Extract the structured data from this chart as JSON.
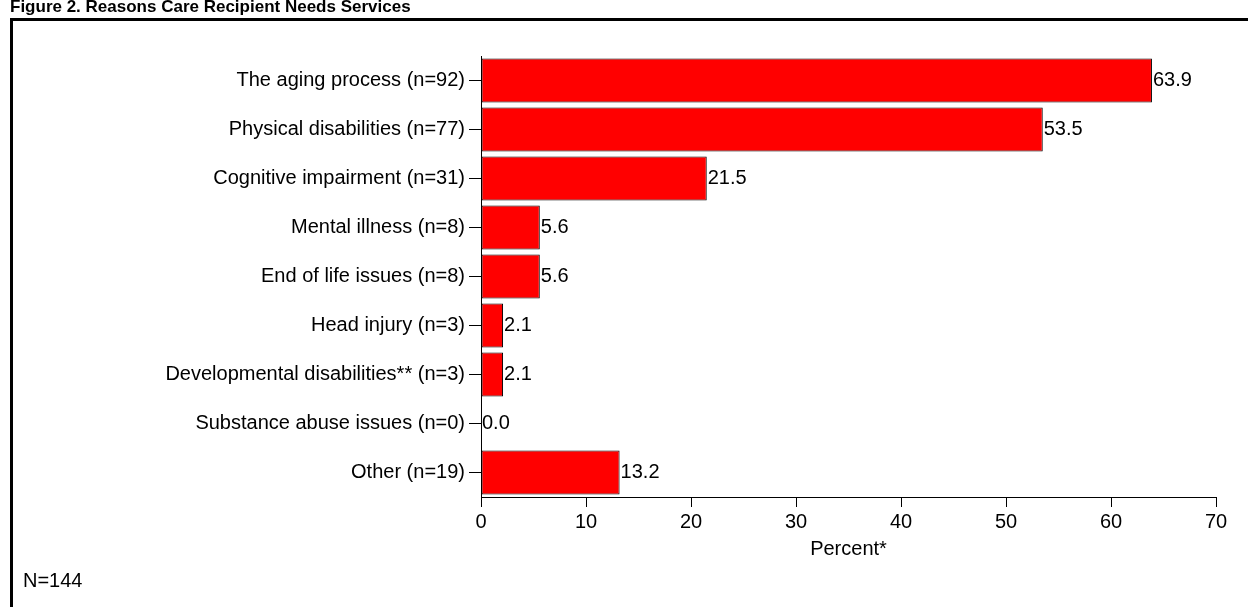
{
  "chart_data": {
    "type": "bar",
    "orientation": "horizontal",
    "title": "Figure 2. Reasons Care Recipient Needs Services",
    "xlabel": "Percent*",
    "categories": [
      "The aging process (n=92)",
      "Physical disabilities (n=77)",
      "Cognitive impairment (n=31)",
      "Mental illness (n=8)",
      "End of life issues (n=8)",
      "Head injury (n=3)",
      "Developmental disabilities** (n=3)",
      "Substance abuse issues (n=0)",
      "Other (n=19)"
    ],
    "values": [
      63.9,
      53.5,
      21.5,
      5.6,
      5.6,
      2.1,
      2.1,
      0,
      13.2
    ],
    "value_labels": [
      "63.9",
      "53.5",
      "21.5",
      "5.6",
      "5.6",
      "2.1",
      "2.1",
      "0.0",
      "13.2"
    ],
    "color": "#ff0000",
    "xlim": [
      0,
      70
    ],
    "xticks": [
      0,
      10,
      20,
      30,
      40,
      50,
      60,
      70
    ],
    "grid": false,
    "legend": false,
    "annotations": [
      "N=144"
    ]
  }
}
